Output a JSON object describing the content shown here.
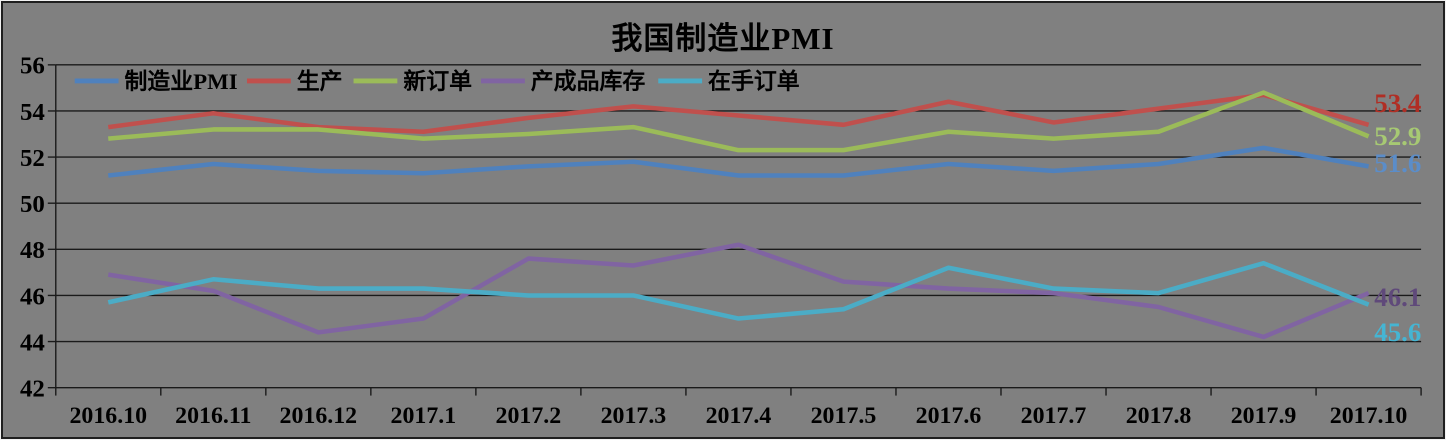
{
  "chart_data": {
    "type": "line",
    "title": "我国制造业PMI",
    "categories": [
      "2016.10",
      "2016.11",
      "2016.12",
      "2017.1",
      "2017.2",
      "2017.3",
      "2017.4",
      "2017.5",
      "2017.6",
      "2017.7",
      "2017.8",
      "2017.9",
      "2017.10"
    ],
    "xlabel": "",
    "ylabel": "",
    "ylim": [
      42,
      56
    ],
    "y_ticks": [
      56,
      54,
      52,
      50,
      48,
      46,
      44,
      42
    ],
    "grid": true,
    "legend_position": "top-inside-row",
    "background_color": "#808080",
    "gridline_color": "#1a1a1a",
    "text_color": "#000000",
    "series": [
      {
        "name": "制造业PMI",
        "slug": "manufacturing-pmi",
        "color": "#4F81BD",
        "values": [
          51.2,
          51.7,
          51.4,
          51.3,
          51.6,
          51.8,
          51.2,
          51.2,
          51.7,
          51.4,
          51.7,
          52.4,
          51.6
        ]
      },
      {
        "name": "生产",
        "slug": "production",
        "color": "#C0504D",
        "values": [
          53.3,
          53.9,
          53.3,
          53.1,
          53.7,
          54.2,
          53.8,
          53.4,
          54.4,
          53.5,
          54.1,
          54.7,
          53.4
        ]
      },
      {
        "name": "新订单",
        "slug": "new-orders",
        "color": "#9BBB59",
        "values": [
          52.8,
          53.2,
          53.2,
          52.8,
          53.0,
          53.3,
          52.3,
          52.3,
          53.1,
          52.8,
          53.1,
          54.8,
          52.9
        ]
      },
      {
        "name": "产成品库存",
        "slug": "finished-goods-inventory",
        "color": "#8064A2",
        "values": [
          46.9,
          46.2,
          44.4,
          45.0,
          47.6,
          47.3,
          48.2,
          46.6,
          46.3,
          46.1,
          45.5,
          44.2,
          46.1
        ]
      },
      {
        "name": "在手订单",
        "slug": "backlog-orders",
        "color": "#4BACC6",
        "values": [
          45.7,
          46.7,
          46.3,
          46.3,
          46.0,
          46.0,
          45.0,
          45.4,
          47.2,
          46.3,
          46.1,
          47.4,
          45.6
        ]
      }
    ],
    "end_labels": [
      {
        "text": "53.4",
        "series": "production",
        "color": "#B02E24"
      },
      {
        "text": "52.9",
        "series": "new-orders",
        "color": "#A7C973"
      },
      {
        "text": "51.6",
        "series": "manufacturing-pmi",
        "color": "#5B8DC9"
      },
      {
        "text": "46.1",
        "series": "finished-goods-inventory",
        "color": "#5F497A"
      },
      {
        "text": "45.6",
        "series": "backlog-orders",
        "color": "#45B5D3"
      }
    ]
  }
}
